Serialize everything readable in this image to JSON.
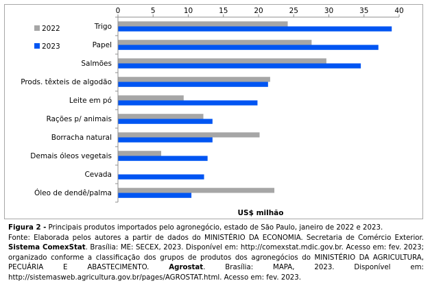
{
  "chart_data": {
    "type": "bar",
    "orientation": "horizontal",
    "categories": [
      "Trigo",
      "Papel",
      "Salmões",
      "Prods. têxteis de algodão",
      "Leite em pó",
      "Rações p/ animais",
      "Borracha natural",
      "Demais óleos vegetais",
      "Cevada",
      "Óleo de dendê/palma"
    ],
    "series": [
      {
        "name": "2022",
        "color": "#a6a6a6",
        "values": [
          24.1,
          27.5,
          29.6,
          21.6,
          9.3,
          12.1,
          20.1,
          6.1,
          0.0,
          22.2
        ]
      },
      {
        "name": "2023",
        "color": "#0055f2",
        "values": [
          38.9,
          37.0,
          34.5,
          21.3,
          19.8,
          13.4,
          13.4,
          12.7,
          12.2,
          10.4
        ]
      }
    ],
    "xlabel": "US$ milhão",
    "xlim": [
      0,
      40
    ],
    "xticks": [
      "0",
      "5",
      "10",
      "15",
      "20",
      "25",
      "30",
      "35",
      "40"
    ],
    "x_axis_position": "top",
    "grid": false,
    "legend_position": "top-left"
  },
  "caption": {
    "title_label": "Figura 2 -",
    "title_text": " Principais produtos importados pelo agronegócio, estado de São Paulo, janeiro de 2022 e 2023.",
    "source_parts": [
      {
        "text": "Fonte: Elaborada pelos autores a partir de dados do MINISTÉRIO DA ECONOMIA. Secretaria de Comércio Exterior. ",
        "bold": false
      },
      {
        "text": "Sistema ComexStat",
        "bold": true
      },
      {
        "text": ". Brasília: ME: SECEX, 2023. Disponível em: http://comexstat.mdic.gov.br. Acesso em: fev. 2023; organizado conforme a classificação dos grupos de produtos dos agronegócios do MINISTÉRIO DA AGRICULTURA, PECUÁRIA E ABASTECIMENTO. ",
        "bold": false
      },
      {
        "text": "Agrostat",
        "bold": true
      },
      {
        "text": ". Brasília: MAPA, 2023. Disponível em: http://sistemasweb.agricultura.gov.br/pages/AGROSTAT.html. Acesso em: fev. 2023.",
        "bold": false
      }
    ]
  }
}
